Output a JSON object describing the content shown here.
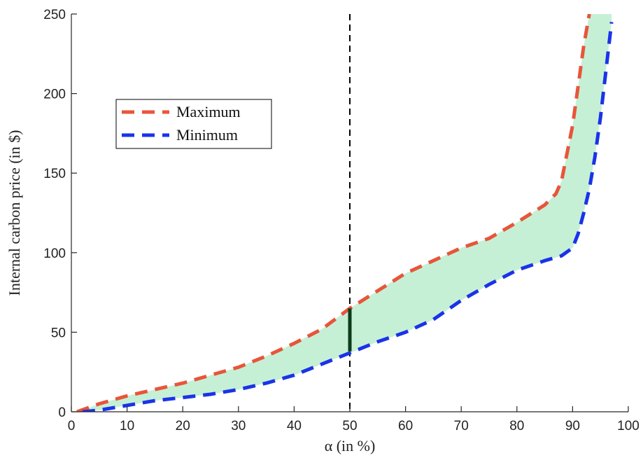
{
  "chart_data": {
    "type": "area",
    "xlabel": "α (in %)",
    "ylabel": "Internal carbon price (in $)",
    "xlim": [
      0,
      100
    ],
    "ylim": [
      0,
      250
    ],
    "xticks": [
      0,
      10,
      20,
      30,
      40,
      50,
      60,
      70,
      80,
      90,
      100
    ],
    "yticks": [
      0,
      50,
      100,
      150,
      200,
      250
    ],
    "grid": false,
    "legend_position": "upper-left",
    "series": [
      {
        "name": "Maximum",
        "color": "#e8553a",
        "style": "dashed",
        "x": [
          1,
          5,
          10,
          15,
          20,
          25,
          30,
          35,
          40,
          45,
          50,
          55,
          60,
          65,
          70,
          75,
          80,
          85,
          87,
          88,
          90,
          91,
          92,
          93
        ],
        "y": [
          0,
          5,
          10,
          14,
          18,
          23,
          28,
          35,
          43,
          52,
          65,
          76,
          87,
          95,
          103,
          109,
          119,
          130,
          137,
          145,
          180,
          205,
          230,
          250
        ]
      },
      {
        "name": "Minimum",
        "color": "#1a33e8",
        "style": "dashed",
        "x": [
          2,
          5,
          10,
          15,
          20,
          25,
          30,
          35,
          40,
          45,
          50,
          55,
          60,
          65,
          70,
          75,
          80,
          85,
          88,
          90,
          91,
          92,
          93,
          94,
          95,
          96,
          97
        ],
        "y": [
          0,
          1,
          4,
          7,
          9,
          11,
          14,
          18,
          23,
          30,
          37,
          44,
          50,
          58,
          70,
          80,
          89,
          95,
          98,
          103,
          112,
          125,
          140,
          160,
          185,
          215,
          245
        ]
      }
    ],
    "band": {
      "color": "#c6f0d6",
      "x": [
        2,
        5,
        10,
        15,
        20,
        25,
        30,
        35,
        40,
        45,
        50,
        55,
        60,
        65,
        70,
        75,
        80,
        85,
        87,
        88,
        90,
        91,
        92,
        93,
        94,
        95,
        96,
        97
      ],
      "upper": [
        1,
        5,
        10,
        14,
        18,
        23,
        28,
        35,
        43,
        52,
        65,
        76,
        87,
        95,
        103,
        109,
        119,
        130,
        137,
        145,
        180,
        205,
        230,
        250,
        250,
        250,
        250,
        250
      ],
      "lower": [
        0,
        1,
        4,
        7,
        9,
        11,
        14,
        18,
        23,
        30,
        37,
        44,
        50,
        58,
        70,
        80,
        89,
        95,
        97,
        98,
        103,
        112,
        125,
        140,
        160,
        185,
        215,
        245
      ]
    },
    "annotations": [
      {
        "type": "vline",
        "x": 50,
        "style": "dashed",
        "color": "#000000"
      },
      {
        "type": "segment",
        "x": 50,
        "y0": 38,
        "y1": 65,
        "color": "#0b3d1a"
      }
    ]
  }
}
